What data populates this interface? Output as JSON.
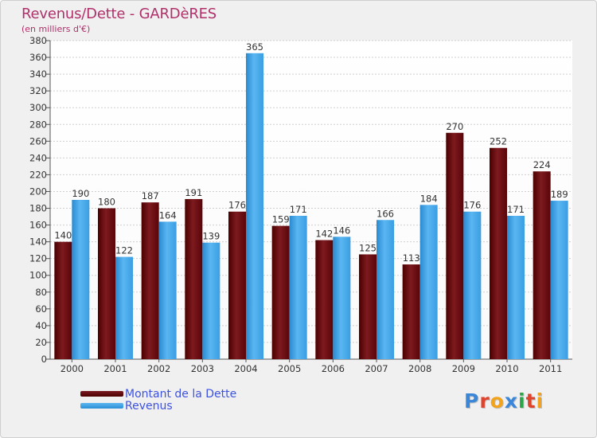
{
  "title": "Revenus/Dette - GARDèRES",
  "subtitle": "(en milliers d'€)",
  "logo": {
    "text": "Proxiti",
    "colors": [
      "#3a86d8",
      "#e0432b",
      "#f2a21b",
      "#3a86d8",
      "#2aa54a",
      "#e0432b",
      "#f2a21b"
    ]
  },
  "colors": {
    "dette": "#6e0d14",
    "revenus": "#4aa8ea"
  },
  "chart_data": {
    "type": "bar",
    "title": "Revenus/Dette - GARDèRES",
    "ylabel": "(en milliers d'€)",
    "categories": [
      "2000",
      "2001",
      "2002",
      "2003",
      "2004",
      "2005",
      "2006",
      "2007",
      "2008",
      "2009",
      "2010",
      "2011"
    ],
    "series": [
      {
        "name": "Montant de la Dette",
        "values": [
          140,
          180,
          187,
          191,
          176,
          159,
          142,
          125,
          113,
          270,
          252,
          224
        ]
      },
      {
        "name": "Revenus",
        "values": [
          190,
          122,
          164,
          139,
          365,
          171,
          146,
          166,
          184,
          176,
          171,
          189
        ]
      }
    ],
    "ylim": [
      0,
      380
    ],
    "ytick_step": 20,
    "grid": true,
    "legend": "bottom-left"
  }
}
